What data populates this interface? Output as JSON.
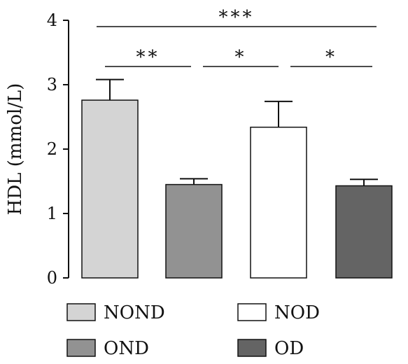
{
  "chart_data": {
    "type": "bar",
    "title": "",
    "xlabel": "",
    "ylabel": "HDL (mmol/L)",
    "ylim": [
      0,
      4
    ],
    "yticks": [
      0,
      1,
      2,
      3,
      4
    ],
    "grid": false,
    "legend_position": "bottom",
    "categories": [
      "NOND",
      "OND",
      "NOD",
      "OD"
    ],
    "series": [
      {
        "values": [
          2.76,
          1.45,
          2.34,
          1.43
        ],
        "errors": [
          0.32,
          0.09,
          0.4,
          0.1
        ],
        "colors": [
          "#d4d4d4",
          "#929292",
          "#ffffff",
          "#646464"
        ]
      }
    ],
    "significance": [
      {
        "from": 0,
        "to": 3,
        "label": "***"
      },
      {
        "from": 0,
        "to": 1,
        "label": "**"
      },
      {
        "from": 1,
        "to": 2,
        "label": "*"
      },
      {
        "from": 2,
        "to": 3,
        "label": "*"
      }
    ],
    "legend": [
      {
        "label": "NOND",
        "color": "#d4d4d4"
      },
      {
        "label": "NOD",
        "color": "#ffffff"
      },
      {
        "label": "OND",
        "color": "#929292"
      },
      {
        "label": "OD",
        "color": "#646464"
      }
    ]
  }
}
